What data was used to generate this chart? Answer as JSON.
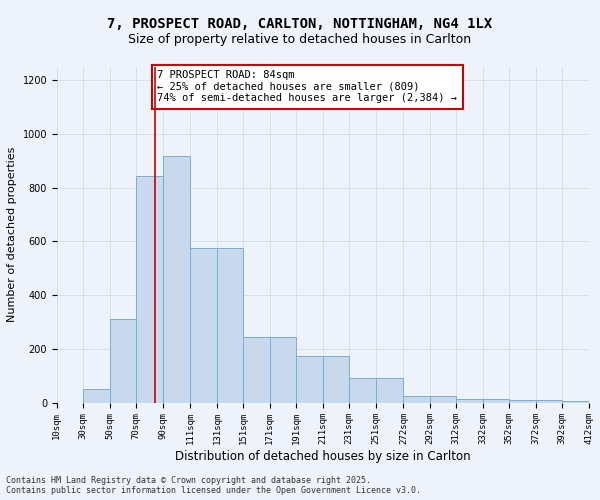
{
  "title_line1": "7, PROSPECT ROAD, CARLTON, NOTTINGHAM, NG4 1LX",
  "title_line2": "Size of property relative to detached houses in Carlton",
  "xlabel": "Distribution of detached houses by size in Carlton",
  "ylabel": "Number of detached properties",
  "bar_color": "#c8d9ee",
  "bar_edge_color": "#7aaed6",
  "bar_edge_width": 0.7,
  "grid_color": "#d0d8e8",
  "background_color": "#eef2fa",
  "annotation_box_color": "#ffffff",
  "annotation_box_edge": "#cc0000",
  "red_line_color": "#cc0000",
  "red_line_x": 84,
  "bar_lefts": [
    10,
    30,
    50,
    70,
    90,
    111,
    131,
    151,
    171,
    191,
    211,
    231,
    251,
    272,
    292,
    312,
    332,
    352,
    372,
    392
  ],
  "bar_widths": [
    20,
    20,
    20,
    20,
    21,
    20,
    20,
    20,
    20,
    20,
    20,
    20,
    21,
    20,
    20,
    20,
    20,
    20,
    20,
    20
  ],
  "bar_heights": [
    0,
    50,
    310,
    845,
    920,
    575,
    575,
    245,
    245,
    175,
    175,
    90,
    90,
    25,
    25,
    15,
    15,
    10,
    10,
    5
  ],
  "tick_positions": [
    10,
    30,
    50,
    70,
    90,
    111,
    131,
    151,
    171,
    191,
    211,
    231,
    251,
    272,
    292,
    312,
    332,
    352,
    372,
    392,
    412
  ],
  "tick_labels": [
    "10sqm",
    "30sqm",
    "50sqm",
    "70sqm",
    "90sqm",
    "111sqm",
    "131sqm",
    "151sqm",
    "171sqm",
    "191sqm",
    "211sqm",
    "231sqm",
    "251sqm",
    "272sqm",
    "292sqm",
    "312sqm",
    "332sqm",
    "352sqm",
    "372sqm",
    "392sqm",
    "412sqm"
  ],
  "xlim": [
    10,
    412
  ],
  "ylim": [
    0,
    1250
  ],
  "yticks": [
    0,
    200,
    400,
    600,
    800,
    1000,
    1200
  ],
  "annotation_text": "7 PROSPECT ROAD: 84sqm\n← 25% of detached houses are smaller (809)\n74% of semi-detached houses are larger (2,384) →",
  "footer_line1": "Contains HM Land Registry data © Crown copyright and database right 2025.",
  "footer_line2": "Contains public sector information licensed under the Open Government Licence v3.0.",
  "title_fontsize": 10,
  "subtitle_fontsize": 9,
  "annotation_fontsize": 7.5,
  "axis_label_fontsize": 8.5,
  "tick_fontsize": 6.5,
  "footer_fontsize": 6,
  "ylabel_fontsize": 8
}
